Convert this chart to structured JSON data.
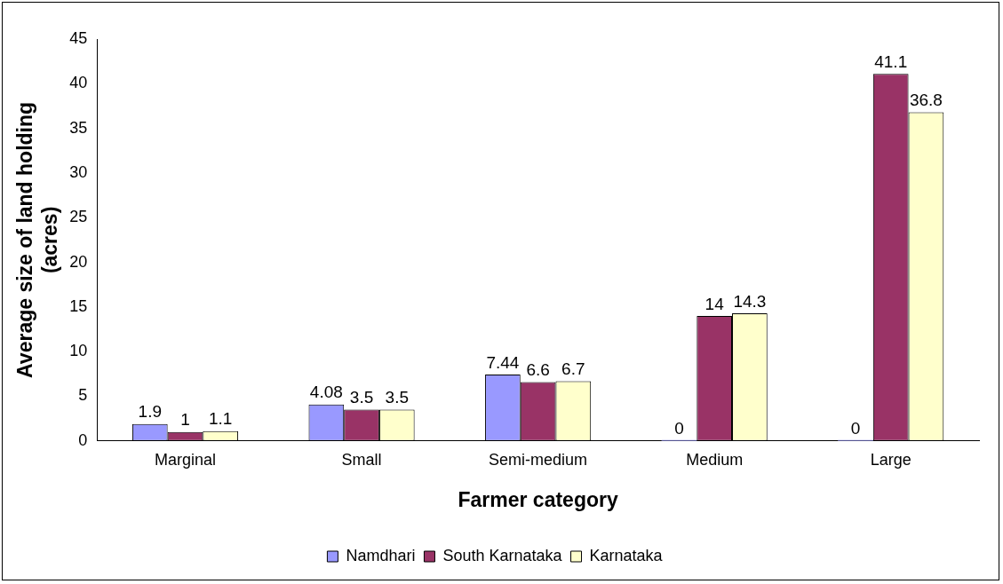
{
  "chart_data": {
    "type": "bar",
    "xlabel": "Farmer category",
    "ylabel": "Average size of land holding (acres)",
    "categories": [
      "Marginal",
      "Small",
      "Semi-medium",
      "Medium",
      "Large"
    ],
    "series": [
      {
        "name": "Namdhari",
        "color": "#9999ff",
        "values": [
          1.9,
          4.08,
          7.44,
          0,
          0
        ]
      },
      {
        "name": "South Karnataka",
        "color": "#993366",
        "values": [
          1,
          3.5,
          6.6,
          14,
          41.1
        ]
      },
      {
        "name": "Karnataka",
        "color": "#ffffcc",
        "values": [
          1.1,
          3.5,
          6.7,
          14.3,
          36.8
        ]
      }
    ],
    "ylim": [
      0,
      45
    ],
    "yticks": [
      0,
      5,
      10,
      15,
      20,
      25,
      30,
      35,
      40,
      45
    ],
    "grid": false,
    "legend": "bottom",
    "data_labels": true
  }
}
